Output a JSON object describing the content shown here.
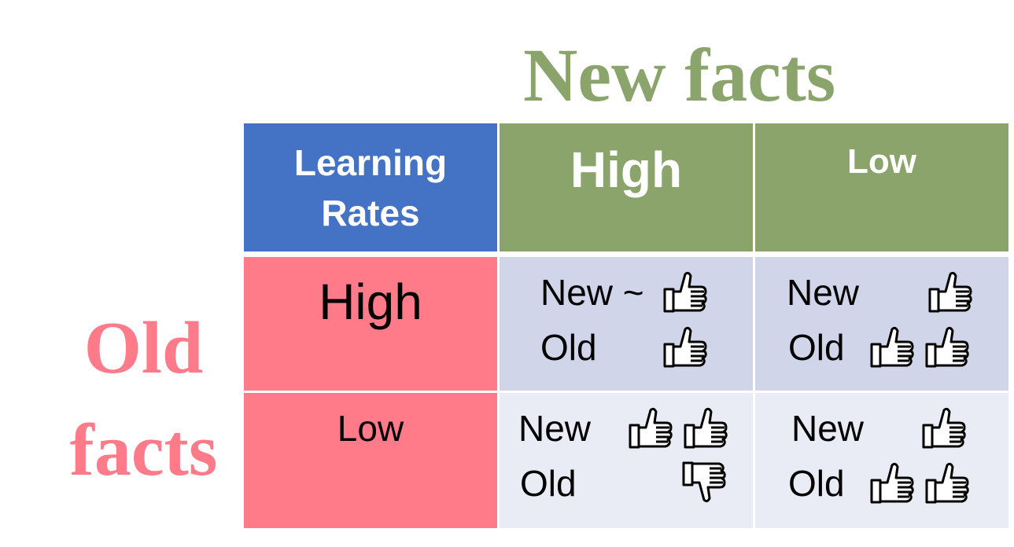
{
  "colors": {
    "new_facts_title": "#8aa46c",
    "old_facts_title": "#ff7b8a",
    "corner_header": "#4472c4",
    "green_header": "#8aa46c",
    "pink_row": "#ff7b8a",
    "row_high_bg": "#d0d5ea",
    "row_low_bg": "#e9ebf5"
  },
  "titles": {
    "new_facts": "New facts",
    "old_facts_line1": "Old",
    "old_facts_line2": "facts"
  },
  "header": {
    "corner_line1": "Learning",
    "corner_line2": "Rates",
    "col_high": "High",
    "col_low": "Low"
  },
  "rows": {
    "high": "High",
    "low": "Low"
  },
  "cells": {
    "high_high": {
      "new_label": "New ~",
      "old_label": "Old",
      "new_icons": [
        "thumbs-up-icon"
      ],
      "old_icons": [
        "thumbs-up-icon"
      ]
    },
    "high_low": {
      "new_label": "New",
      "old_label": "Old",
      "new_icons": [
        "thumbs-up-icon"
      ],
      "old_icons": [
        "thumbs-up-icon",
        "thumbs-up-icon"
      ]
    },
    "low_high": {
      "new_label": "New",
      "old_label": "Old",
      "new_icons": [
        "thumbs-up-icon",
        "thumbs-up-icon"
      ],
      "old_icons": [
        "thumbs-down-icon"
      ]
    },
    "low_low": {
      "new_label": "New",
      "old_label": "Old",
      "new_icons": [
        "thumbs-up-icon"
      ],
      "old_icons": [
        "thumbs-up-icon",
        "thumbs-up-icon"
      ]
    }
  }
}
